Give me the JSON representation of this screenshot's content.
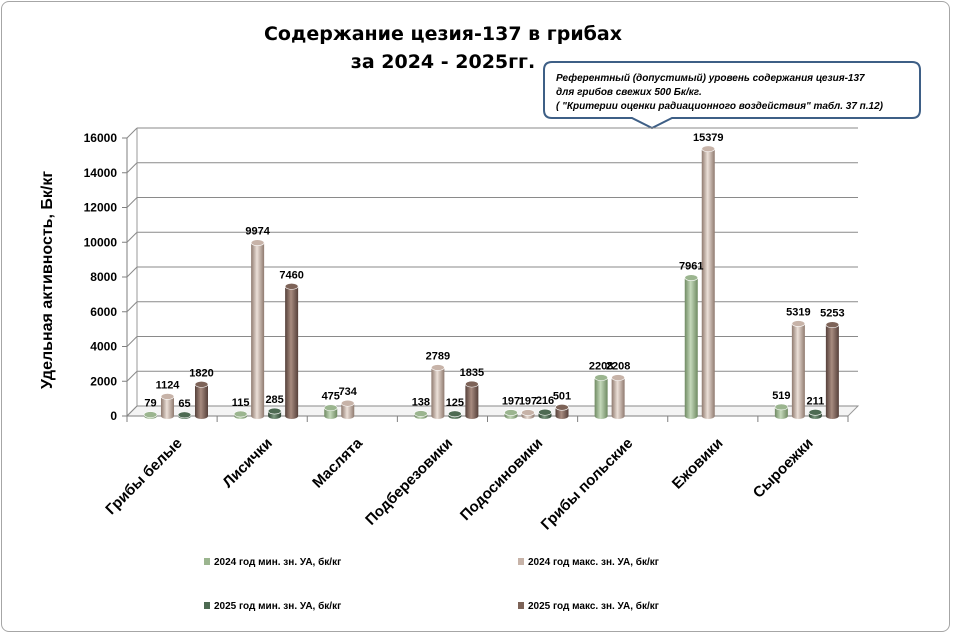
{
  "chart_data": {
    "type": "bar",
    "title_line1": "Содержание цезия-137 в грибах",
    "title_line2": "за 2024 - 2025гг.",
    "ylabel": "Удельная активность, Бк/кг",
    "ylim": [
      0,
      16000
    ],
    "yticks": [
      "0",
      "2000",
      "4000",
      "6000",
      "8000",
      "10000",
      "12000",
      "14000",
      "16000"
    ],
    "grid": true,
    "legend_position": "bottom",
    "categories": [
      "Грибы белые",
      "Лисички",
      "Маслята",
      "Подберезовики",
      "Подосиновики",
      "Грибы польские",
      "Ежовики",
      "Сыроежки"
    ],
    "series": [
      {
        "name": "2024 год мин. зн. УА, бк/кг",
        "values": [
          79,
          115,
          475,
          138,
          197,
          2208,
          7961,
          519
        ],
        "labels": [
          "79",
          "115",
          "475",
          "138",
          "197",
          "2208",
          "7961",
          "519"
        ],
        "color": "#9bb58f"
      },
      {
        "name": "2024 год макс.  зн. УА, бк/кг",
        "values": [
          1124,
          9974,
          734,
          2789,
          197,
          2208,
          15379,
          5319
        ],
        "labels": [
          "1124",
          "9974",
          "734",
          "2789",
          "197",
          "2208",
          "15379",
          "5319"
        ],
        "color": "#c7b3a8"
      },
      {
        "name": "2025 год мин. зн. УА, бк/кг",
        "values": [
          65,
          285,
          null,
          125,
          216,
          null,
          null,
          211
        ],
        "labels": [
          "65",
          "285",
          "",
          "125",
          "216",
          "",
          "",
          "211"
        ],
        "color": "#4d6a52"
      },
      {
        "name": "2025 год макс.  зн. УА, бк/кг",
        "values": [
          1820,
          7460,
          null,
          1835,
          501,
          null,
          null,
          5253
        ],
        "labels": [
          "1820",
          "7460",
          "",
          "1835",
          "501",
          "",
          "",
          "5253"
        ],
        "color": "#7d6358"
      }
    ],
    "annotation": {
      "line1": "Референтный (допустимый) уровень содержания цезия-137",
      "line2": "для грибов свежих  500 Бк/кг.",
      "line3": "( \"Критерии оценки радиационного воздействия\"  табл. 37 п.12)"
    }
  }
}
